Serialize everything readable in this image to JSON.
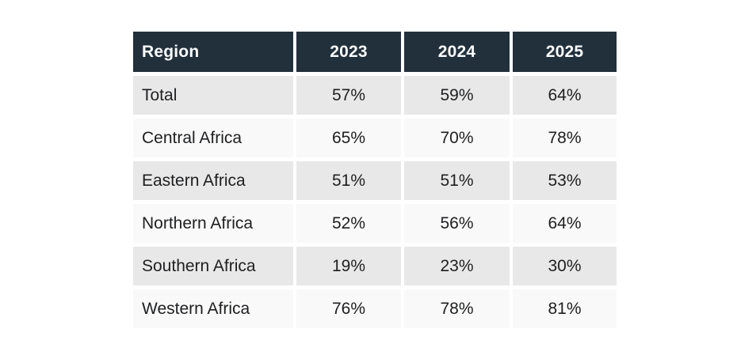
{
  "colors": {
    "header_bg": "#22303c",
    "header_text": "#fafbfc",
    "row_alt_bg": "#e9e8e8",
    "row_bg": "#faf9f9",
    "cell_text": "#1d1f21",
    "page_bg": "#ffffff"
  },
  "table": {
    "columns": [
      "Region",
      "2023",
      "2024",
      "2025"
    ],
    "rows": [
      {
        "region": "Total",
        "values": [
          "57%",
          "59%",
          "64%"
        ]
      },
      {
        "region": "Central Africa",
        "values": [
          "65%",
          "70%",
          "78%"
        ]
      },
      {
        "region": "Eastern Africa",
        "values": [
          "51%",
          "51%",
          "53%"
        ]
      },
      {
        "region": "Northern Africa",
        "values": [
          "52%",
          "56%",
          "64%"
        ]
      },
      {
        "region": "Southern Africa",
        "values": [
          "19%",
          "23%",
          "30%"
        ]
      },
      {
        "region": "Western Africa",
        "values": [
          "76%",
          "78%",
          "81%"
        ]
      }
    ]
  },
  "chart_data": {
    "type": "table",
    "title": "",
    "columns": [
      "Region",
      "2023",
      "2024",
      "2025"
    ],
    "unit": "%",
    "rows": [
      [
        "Total",
        57,
        59,
        64
      ],
      [
        "Central Africa",
        65,
        70,
        78
      ],
      [
        "Eastern Africa",
        51,
        51,
        53
      ],
      [
        "Northern Africa",
        52,
        56,
        64
      ],
      [
        "Southern Africa",
        19,
        23,
        30
      ],
      [
        "Western Africa",
        76,
        78,
        81
      ]
    ]
  }
}
